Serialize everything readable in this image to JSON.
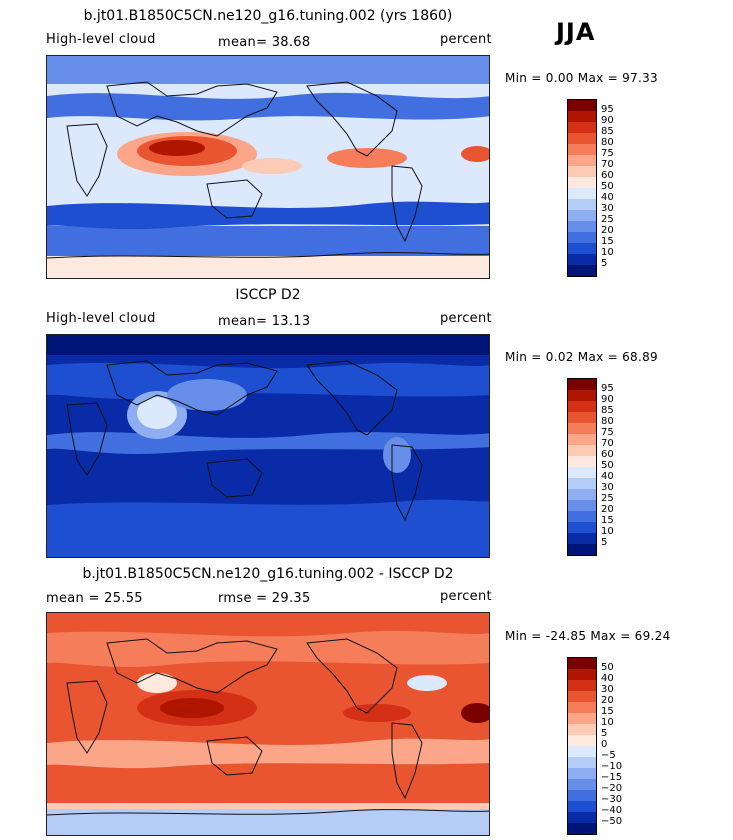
{
  "season": "JJA",
  "colors": {
    "pos_scale": [
      "#7a0000",
      "#b01500",
      "#d43015",
      "#e85530",
      "#f57d5a",
      "#fba688",
      "#fdcbb5",
      "#fde9de",
      "#dce8fb",
      "#b5ccf6",
      "#8eaef1",
      "#678fe9",
      "#416fdf",
      "#1d4fd0",
      "#0a2ba8",
      "#001578"
    ],
    "diff_scale": [
      "#7a0000",
      "#b01500",
      "#d43015",
      "#e85530",
      "#f57d5a",
      "#fba688",
      "#fdcbb5",
      "#fde9de",
      "#dce8fb",
      "#b5ccf6",
      "#8eaef1",
      "#678fe9",
      "#416fdf",
      "#1d4fd0",
      "#0a2ba8",
      "#001578"
    ]
  },
  "panels": [
    {
      "title": "b.jt01.B1850C5CN.ne120_g16.tuning.002 (yrs 1860)",
      "left_label": "High-level cloud",
      "stat_text": "mean=  38.68",
      "units": "percent",
      "minmax": "Min =   0.00 Max =  97.33",
      "ticks": [
        "95",
        "90",
        "85",
        "80",
        "75",
        "70",
        "60",
        "50",
        "40",
        "30",
        "25",
        "20",
        "15",
        "10",
        "5"
      ]
    },
    {
      "title": "ISCCP D2",
      "left_label": "High-level cloud",
      "stat_text": "mean=  13.13",
      "units": "percent",
      "minmax": "Min =   0.02 Max =  68.89",
      "ticks": [
        "95",
        "90",
        "85",
        "80",
        "75",
        "70",
        "60",
        "50",
        "40",
        "30",
        "25",
        "20",
        "15",
        "10",
        "5"
      ]
    },
    {
      "title": "b.jt01.B1850C5CN.ne120_g16.tuning.002 - ISCCP D2",
      "left_label": "mean =  25.55",
      "stat_text": "rmse =  29.35",
      "units": "percent",
      "minmax": "Min = -24.85 Max =  69.24",
      "ticks": [
        "50",
        "40",
        "30",
        "20",
        "15",
        "10",
        "5",
        "0",
        "−5",
        "−10",
        "−15",
        "−20",
        "−30",
        "−40",
        "−50"
      ]
    }
  ]
}
